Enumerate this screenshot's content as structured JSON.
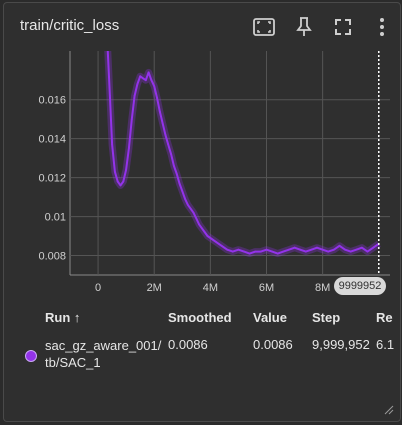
{
  "card": {
    "title": "train/critic_loss"
  },
  "toolbar": {
    "icons": [
      "fit-domain-icon",
      "pin-icon",
      "fullscreen-icon",
      "more-vert-icon"
    ]
  },
  "chart_data": {
    "type": "line",
    "title": "",
    "xlabel": "",
    "ylabel": "",
    "xlim": [
      -1000000,
      10400000
    ],
    "ylim": [
      0.007,
      0.0185
    ],
    "x_ticks": [
      0,
      2000000,
      4000000,
      6000000,
      8000000
    ],
    "x_tick_labels": [
      "0",
      "2M",
      "4M",
      "6M",
      "8M"
    ],
    "y_ticks": [
      0.008,
      0.01,
      0.012,
      0.014,
      0.016
    ],
    "y_tick_labels": [
      "0.008",
      "0.01",
      "0.012",
      "0.014",
      "0.016"
    ],
    "grid": true,
    "hover_step": 9999952,
    "hover_step_label": "9999952",
    "series": [
      {
        "name": "sac_gz_aware_001/tb/SAC_1",
        "color": "#9333ea",
        "x": [
          330000,
          420000,
          500000,
          600000,
          700000,
          800000,
          900000,
          1000000,
          1100000,
          1200000,
          1300000,
          1400000,
          1500000,
          1600000,
          1700000,
          1800000,
          1900000,
          2000000,
          2100000,
          2200000,
          2300000,
          2400000,
          2500000,
          2600000,
          2700000,
          2800000,
          2900000,
          3000000,
          3100000,
          3200000,
          3300000,
          3400000,
          3500000,
          3600000,
          3700000,
          3800000,
          3900000,
          4000000,
          4200000,
          4400000,
          4600000,
          4800000,
          5000000,
          5200000,
          5400000,
          5600000,
          5800000,
          6000000,
          6200000,
          6400000,
          6600000,
          6800000,
          7000000,
          7200000,
          7400000,
          7600000,
          7800000,
          8000000,
          8200000,
          8400000,
          8600000,
          8800000,
          9000000,
          9200000,
          9400000,
          9600000,
          9800000,
          9999952
        ],
        "y": [
          0.019,
          0.0162,
          0.0137,
          0.0123,
          0.0118,
          0.0116,
          0.0118,
          0.0124,
          0.0135,
          0.015,
          0.0162,
          0.0168,
          0.0172,
          0.0171,
          0.017,
          0.0174,
          0.017,
          0.0167,
          0.0161,
          0.0154,
          0.0148,
          0.0142,
          0.0137,
          0.0132,
          0.0126,
          0.0122,
          0.0117,
          0.0113,
          0.0109,
          0.0106,
          0.0104,
          0.0102,
          0.0099,
          0.0096,
          0.0094,
          0.0092,
          0.009,
          0.0089,
          0.0087,
          0.0085,
          0.0083,
          0.0082,
          0.0083,
          0.0082,
          0.0081,
          0.0082,
          0.0082,
          0.0083,
          0.0082,
          0.0081,
          0.0082,
          0.0083,
          0.0084,
          0.0083,
          0.0082,
          0.0083,
          0.0084,
          0.0083,
          0.0082,
          0.0083,
          0.0085,
          0.0083,
          0.0082,
          0.0083,
          0.0084,
          0.0082,
          0.0084,
          0.0086
        ]
      }
    ]
  },
  "table": {
    "headers": {
      "run": "Run ↑",
      "smoothed": "Smoothed",
      "value": "Value",
      "step": "Step",
      "relative": "Re"
    },
    "rows": [
      {
        "run": "sac_gz_aware_001/ tb/SAC_1",
        "color": "#9333ea",
        "smoothed": "0.0086",
        "value": "0.0086",
        "step": "9,999,952",
        "relative": "6.1"
      }
    ]
  }
}
